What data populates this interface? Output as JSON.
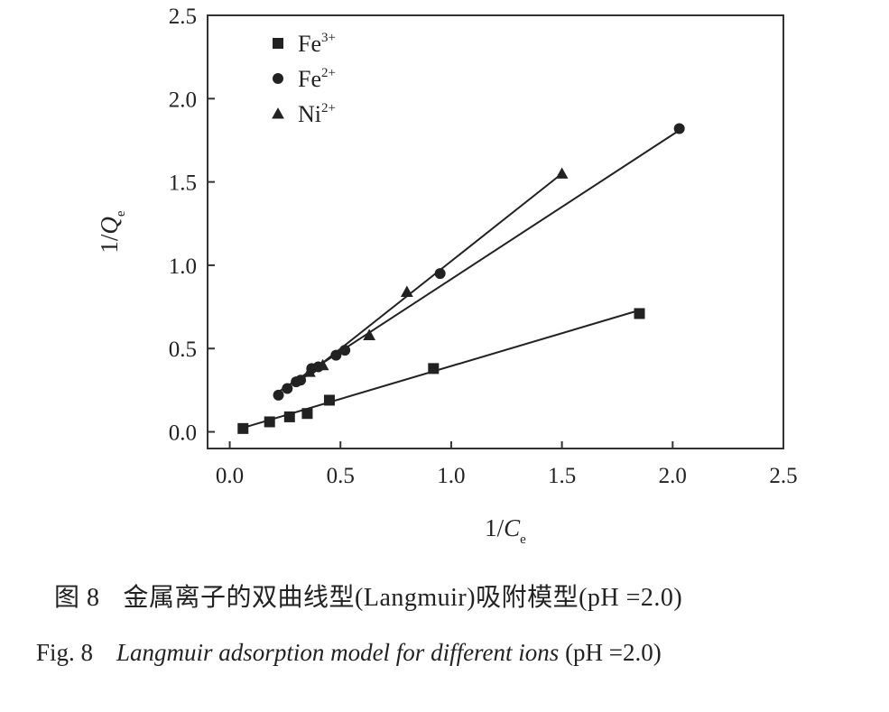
{
  "chart_data": {
    "type": "scatter",
    "xlabel": {
      "main": "1/",
      "var": "C",
      "sub": "e"
    },
    "ylabel": {
      "main": "1/",
      "var": "Q",
      "sub": "e"
    },
    "xlim": [
      -0.1,
      2.5
    ],
    "ylim": [
      -0.1,
      2.5
    ],
    "x_ticks": [
      "0.0",
      "0.5",
      "1.0",
      "1.5",
      "2.0",
      "2.5"
    ],
    "y_ticks": [
      "0.0",
      "0.5",
      "1.0",
      "1.5",
      "2.0",
      "2.5"
    ],
    "legend_position": "top-left",
    "series": [
      {
        "name": "Fe3+",
        "legend_base": "Fe",
        "legend_sup": "3+",
        "marker": "square",
        "x": [
          0.06,
          0.18,
          0.27,
          0.35,
          0.45,
          0.92,
          1.85
        ],
        "y": [
          0.02,
          0.06,
          0.09,
          0.11,
          0.19,
          0.38,
          0.71
        ],
        "fit": [
          [
            0.05,
            0.02
          ],
          [
            1.85,
            0.73
          ]
        ]
      },
      {
        "name": "Fe2+",
        "legend_base": "Fe",
        "legend_sup": "2+",
        "marker": "circle",
        "x": [
          0.22,
          0.26,
          0.3,
          0.32,
          0.37,
          0.4,
          0.48,
          0.52,
          0.95,
          2.03
        ],
        "y": [
          0.22,
          0.26,
          0.3,
          0.31,
          0.38,
          0.39,
          0.46,
          0.49,
          0.95,
          1.82
        ],
        "fit": [
          [
            0.22,
            0.24
          ],
          [
            2.03,
            1.81
          ]
        ]
      },
      {
        "name": "Ni2+",
        "legend_base": "Ni",
        "legend_sup": "2+",
        "marker": "triangle",
        "x": [
          0.36,
          0.42,
          0.63,
          0.8,
          1.5
        ],
        "y": [
          0.36,
          0.4,
          0.58,
          0.84,
          1.55
        ],
        "fit": [
          [
            0.33,
            0.32
          ],
          [
            1.5,
            1.55
          ]
        ]
      }
    ]
  },
  "caption": {
    "zh_label": "图 8",
    "zh_text": "金属离子的双曲线型(Langmuir)吸附模型(pH =2.0)",
    "en_label": "Fig. 8",
    "en_text": "Langmuir adsorption model for different ions",
    "en_suffix": "(pH =2.0)"
  },
  "colors": {
    "ink": "#222222",
    "axis": "#333333"
  }
}
